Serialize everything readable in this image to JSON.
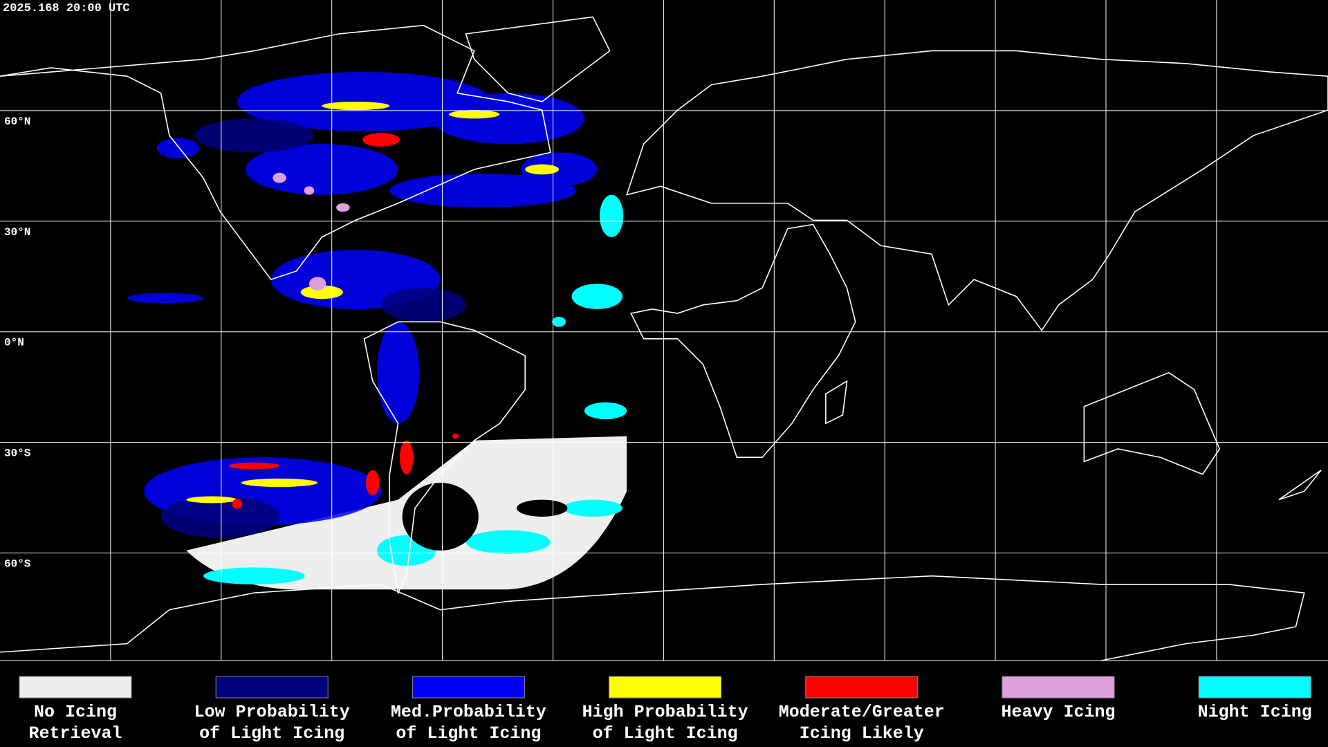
{
  "timestamp": "2025.168 20:00 UTC",
  "latitude_labels": [
    "60°N",
    "30°N",
    "0°N",
    "30°S",
    "60°S"
  ],
  "legend": [
    {
      "lines": [
        "No Icing",
        "Retrieval"
      ],
      "color": "#eeeeee"
    },
    {
      "lines": [
        "Low Probability",
        "of Light Icing"
      ],
      "color": "#000080"
    },
    {
      "lines": [
        "Med.Probability",
        "of Light Icing"
      ],
      "color": "#0000ff"
    },
    {
      "lines": [
        "High Probability",
        "of Light Icing"
      ],
      "color": "#ffff00"
    },
    {
      "lines": [
        "Moderate/Greater",
        "Icing Likely"
      ],
      "color": "#ff0000"
    },
    {
      "lines": [
        "Heavy Icing"
      ],
      "color": "#e0a0e0"
    },
    {
      "lines": [
        "Night Icing"
      ],
      "color": "#00ffff"
    }
  ]
}
